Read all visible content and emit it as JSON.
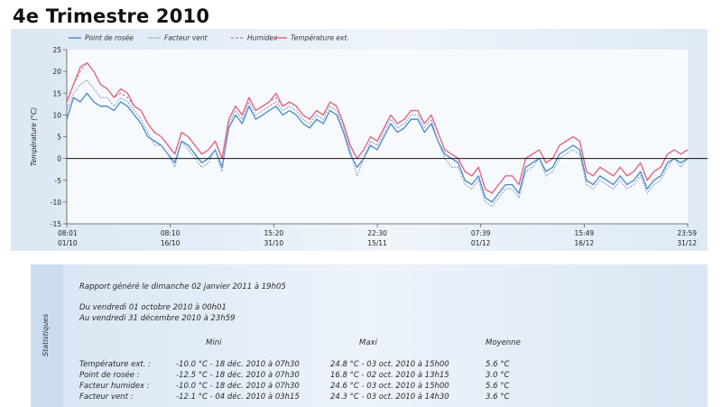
{
  "page_title": "4e Trimestre 2010",
  "chart_data": {
    "type": "line",
    "ylabel": "Température (°C)",
    "ylim": [
      -15,
      25
    ],
    "yticks": [
      -15,
      -10,
      -5,
      0,
      5,
      10,
      15,
      20,
      25
    ],
    "xrange": [
      "2010-10-01T00:01",
      "2010-12-31T23:59"
    ],
    "xticks": [
      {
        "time": "08:01",
        "date": "01/10"
      },
      {
        "time": "08:10",
        "date": "16/10"
      },
      {
        "time": "15:20",
        "date": "31/10"
      },
      {
        "time": "22:30",
        "date": "15/11"
      },
      {
        "time": "07:39",
        "date": "01/12"
      },
      {
        "time": "15:49",
        "date": "16/12"
      },
      {
        "time": "23:59",
        "date": "31/12"
      }
    ],
    "grid": false,
    "legend_position": "top",
    "series": [
      {
        "name": "Point de rosée",
        "color": "#4a86c8",
        "style": "solid",
        "values": [
          9,
          14,
          13,
          15,
          13,
          12,
          12,
          11,
          13,
          12,
          10,
          8,
          5,
          4,
          3,
          1,
          -1,
          4,
          3,
          1,
          -1,
          0,
          2,
          -2,
          7,
          10,
          8,
          12,
          9,
          10,
          11,
          12,
          10,
          11,
          10,
          8,
          7,
          9,
          8,
          11,
          10,
          6,
          1,
          -2,
          0,
          3,
          2,
          5,
          8,
          6,
          7,
          9,
          9,
          6,
          8,
          4,
          1,
          0,
          -1,
          -5,
          -6,
          -4,
          -9,
          -10,
          -8,
          -6,
          -6,
          -8,
          -2,
          -1,
          0,
          -3,
          -2,
          1,
          2,
          3,
          2,
          -5,
          -6,
          -4,
          -5,
          -6,
          -4,
          -6,
          -5,
          -3,
          -7,
          -5,
          -4,
          -1,
          0,
          -1,
          0
        ]
      },
      {
        "name": "Facteur vent",
        "color": "#7fa2c5",
        "style": "dotted",
        "values": [
          11,
          15,
          17,
          18,
          16,
          14,
          14,
          12,
          14,
          13,
          11,
          9,
          6,
          3,
          3,
          1,
          -2,
          4,
          2,
          0,
          -2,
          -1,
          2,
          -3,
          8,
          11,
          9,
          13,
          10,
          11,
          12,
          13,
          11,
          12,
          11,
          9,
          8,
          10,
          9,
          12,
          11,
          7,
          2,
          -4,
          0,
          4,
          3,
          6,
          9,
          7,
          8,
          10,
          10,
          7,
          9,
          4,
          0,
          -2,
          -2,
          -6,
          -7,
          -5,
          -10,
          -11,
          -9,
          -7,
          -7,
          -9,
          -3,
          -2,
          0,
          -4,
          -3,
          0,
          1,
          2,
          1,
          -6,
          -7,
          -5,
          -6,
          -7,
          -5,
          -7,
          -6,
          -4,
          -8,
          -6,
          -5,
          -2,
          0,
          -2,
          0
        ]
      },
      {
        "name": "Humidex",
        "color": "#c98aa8",
        "style": "dashed",
        "values": [
          13,
          17,
          20,
          22,
          20,
          17,
          16,
          14,
          15,
          14,
          12,
          11,
          8,
          6,
          5,
          3,
          1,
          6,
          5,
          3,
          1,
          2,
          4,
          0,
          9,
          12,
          10,
          14,
          11,
          12,
          13,
          14,
          12,
          13,
          12,
          10,
          9,
          11,
          10,
          13,
          12,
          8,
          3,
          0,
          2,
          5,
          4,
          7,
          10,
          8,
          9,
          11,
          11,
          8,
          10,
          6,
          2,
          1,
          0,
          -3,
          -4,
          -2,
          -7,
          -8,
          -6,
          -4,
          -4,
          -6,
          0,
          1,
          2,
          -1,
          0,
          3,
          4,
          5,
          4,
          -3,
          -4,
          -2,
          -3,
          -4,
          -2,
          -4,
          -3,
          -1,
          -5,
          -3,
          -2,
          1,
          2,
          1,
          2
        ]
      },
      {
        "name": "Température ext.",
        "color": "#e8607f",
        "style": "solid",
        "values": [
          13,
          17,
          21,
          22,
          20,
          17,
          16,
          14,
          16,
          15,
          12,
          11,
          8,
          6,
          5,
          3,
          1,
          6,
          5,
          3,
          1,
          2,
          4,
          0,
          9,
          12,
          10,
          14,
          11,
          12,
          13,
          15,
          12,
          13,
          12,
          10,
          9,
          11,
          10,
          13,
          12,
          8,
          3,
          0,
          2,
          5,
          4,
          7,
          10,
          8,
          9,
          11,
          11,
          8,
          10,
          6,
          2,
          1,
          0,
          -3,
          -4,
          -2,
          -7,
          -8,
          -6,
          -4,
          -4,
          -6,
          0,
          1,
          2,
          -1,
          0,
          3,
          4,
          5,
          4,
          -3,
          -4,
          -2,
          -3,
          -4,
          -2,
          -4,
          -3,
          -1,
          -5,
          -3,
          -2,
          1,
          2,
          1,
          2
        ]
      }
    ]
  },
  "stats": {
    "side_label": "Statistiques",
    "report": "Rapport généré le dimanche 02 janvier 2011 à 19h05",
    "from": "Du vendredi 01 octobre 2010 à 00h01",
    "to": "Au vendredi 31 décembre 2010 à 23h59",
    "headers": {
      "min": "Mini",
      "max": "Maxi",
      "avg": "Moyenne"
    },
    "rows": [
      {
        "label": "Température ext. :",
        "min": "-10.0 °C - 18 déc. 2010 à 07h30",
        "max": "24.8 °C - 03 oct. 2010 à 15h00",
        "avg": "5.6 °C"
      },
      {
        "label": "Point de rosée :",
        "min": "-12.5 °C - 18 déc. 2010 à 07h30",
        "max": "16.8 °C - 02 oct. 2010 à 13h15",
        "avg": "3.0 °C"
      },
      {
        "label": "Facteur humidex :",
        "min": "-10.0 °C - 18 déc. 2010 à 07h30",
        "max": "24.6 °C - 03 oct. 2010 à 15h00",
        "avg": "5.6 °C"
      },
      {
        "label": "Facteur vent :",
        "min": "-12.1 °C - 04 déc. 2010 à 03h15",
        "max": "24.3 °C - 03 oct. 2010 à 14h30",
        "avg": "3.6 °C"
      }
    ]
  }
}
